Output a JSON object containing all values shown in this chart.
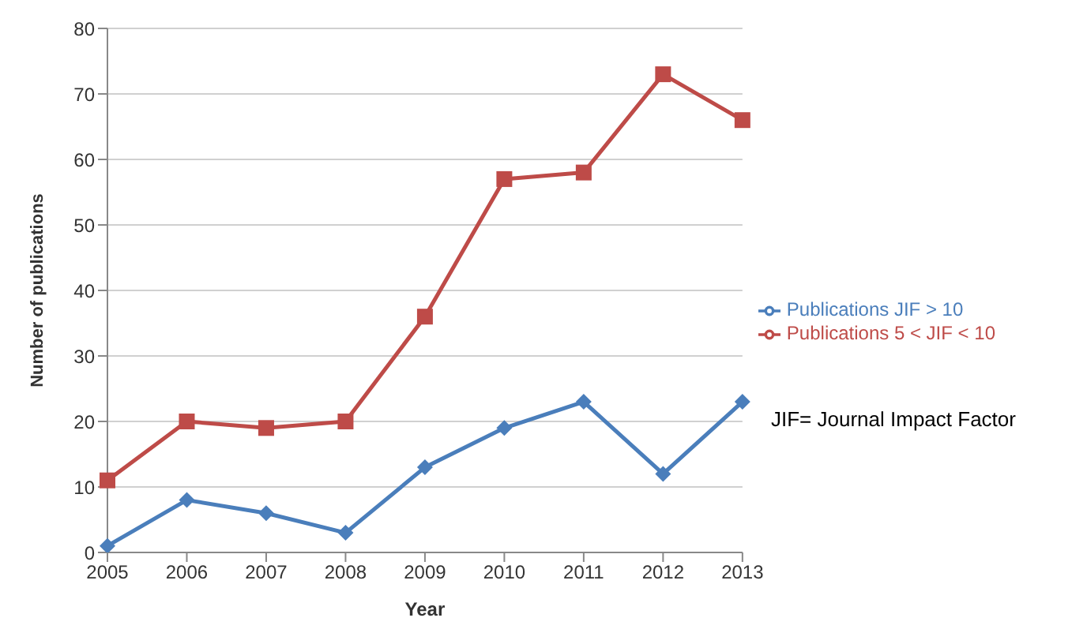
{
  "chart_data": {
    "type": "line",
    "xlabel": "Year",
    "ylabel": "Number of publications",
    "categories": [
      "2005",
      "2006",
      "2007",
      "2008",
      "2009",
      "2010",
      "2011",
      "2012",
      "2013"
    ],
    "series": [
      {
        "name": "Publications JIF > 10",
        "color": "#4a7ebb",
        "marker": "diamond",
        "values": [
          1,
          8,
          6,
          3,
          13,
          19,
          23,
          12,
          23
        ]
      },
      {
        "name": "Publications 5 < JIF < 10",
        "color": "#be4b48",
        "marker": "square",
        "values": [
          11,
          20,
          19,
          20,
          36,
          57,
          58,
          73,
          66
        ]
      }
    ],
    "ylim": [
      0,
      80
    ],
    "yticks": [
      0,
      10,
      20,
      30,
      40,
      50,
      60,
      70,
      80
    ],
    "grid": "y",
    "legend": "right",
    "annotations": [
      "JIF= Journal Impact Factor"
    ]
  }
}
